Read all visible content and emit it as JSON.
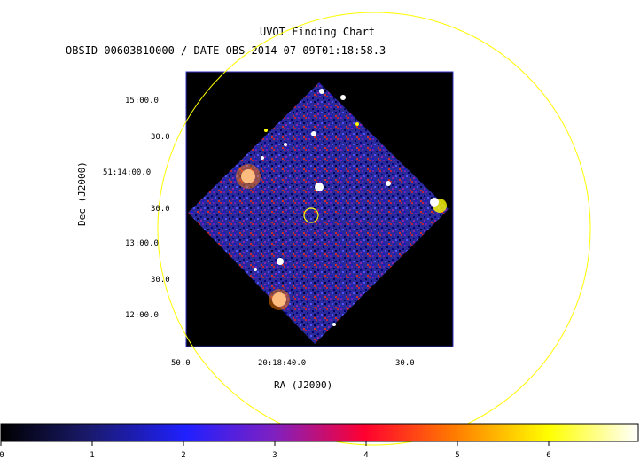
{
  "title": "UVOT Finding Chart",
  "subtitle": "OBSID 00603810000 / DATE-OBS 2014-07-09T01:18:58.3",
  "axes": {
    "x_label": "RA (J2000)",
    "y_label": "Dec (J2000)",
    "x_ticks": [
      "50.0",
      "20:18:40.0",
      "30.0"
    ],
    "y_ticks": [
      "15:00.0",
      "30.0",
      "51:14:00.0",
      "30.0",
      "13:00.0",
      "30.0",
      "12:00.0"
    ]
  },
  "colorbar": {
    "labels": [
      "0",
      "1",
      "2",
      "3",
      "4",
      "5",
      "6"
    ],
    "stops": [
      "#000000",
      "#1a1a6e",
      "#2020ff",
      "#8020c0",
      "#ff0030",
      "#ff7a00",
      "#ffff00",
      "#ffffff"
    ]
  },
  "colors": {
    "frame": "#3030c0",
    "circle": "#ffff00",
    "image_bg": "#000000"
  }
}
